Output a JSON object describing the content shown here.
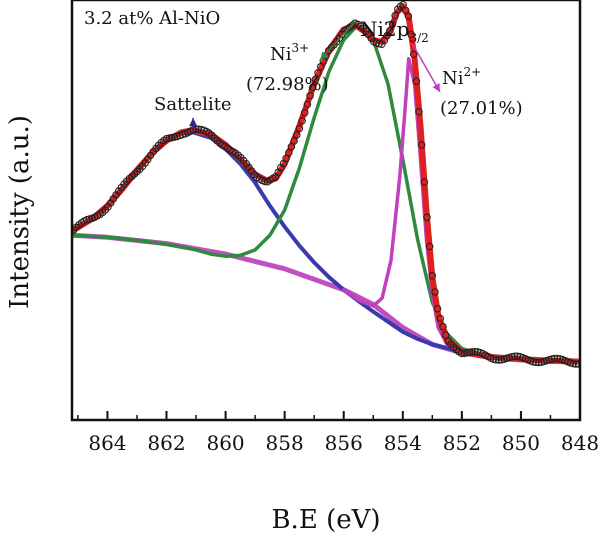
{
  "chart_data": {
    "type": "line",
    "title": "",
    "sample_label": "3.2 at% Al-NiO",
    "xlabel": "B.E (eV)",
    "ylabel": "Intensity (a.u.)",
    "xlim": [
      865.2,
      848
    ],
    "x_reversed": true,
    "ylim": [
      0,
      1
    ],
    "x_ticks": [
      864,
      862,
      860,
      858,
      856,
      854,
      852,
      850,
      848
    ],
    "y_ticks_shown": false,
    "grid": false,
    "legend": "none",
    "region_label": {
      "main": "Ni2p",
      "sub": "3/2"
    },
    "annotations": [
      {
        "text": "Sattelite",
        "target_x": 861.1,
        "target_y": 0.68,
        "color": "#2a2a9a"
      },
      {
        "species": "Ni",
        "charge": "3+",
        "percent": "(72.98%)",
        "target_x": 855.6,
        "target_y": 0.935,
        "color": "#2d8a3e"
      },
      {
        "species": "Ni",
        "charge": "2+",
        "percent": "(27.01%)",
        "target_x": 853.8,
        "target_y": 0.88,
        "color": "#c040c0"
      }
    ],
    "series": [
      {
        "role": "background",
        "color": "#c050c0",
        "x": [
          865.2,
          864,
          862,
          860,
          858,
          857,
          856,
          855,
          854,
          853.5,
          853,
          852,
          851,
          850,
          849,
          848
        ],
        "y": [
          0.44,
          0.435,
          0.42,
          0.395,
          0.36,
          0.335,
          0.31,
          0.275,
          0.22,
          0.2,
          0.18,
          0.16,
          0.148,
          0.143,
          0.14,
          0.138
        ]
      },
      {
        "role": "satellite",
        "color": "#3a3ab0",
        "x": [
          865.2,
          864.5,
          864,
          863.5,
          863,
          862.5,
          862,
          861.5,
          861.1,
          860.5,
          860,
          859.5,
          859,
          858.5,
          858,
          857.5,
          857,
          856.5,
          856,
          855.5,
          855,
          854.5,
          854,
          853.5,
          853,
          852,
          851,
          850,
          849,
          848
        ],
        "y": [
          0.45,
          0.478,
          0.51,
          0.55,
          0.595,
          0.635,
          0.665,
          0.682,
          0.685,
          0.672,
          0.645,
          0.61,
          0.565,
          0.51,
          0.46,
          0.415,
          0.375,
          0.34,
          0.31,
          0.283,
          0.258,
          0.234,
          0.21,
          0.193,
          0.18,
          0.162,
          0.15,
          0.145,
          0.141,
          0.139
        ]
      },
      {
        "role": "Ni3+",
        "color": "#2d8a3e",
        "x": [
          865.2,
          864,
          863,
          862,
          861,
          860.5,
          860,
          859.5,
          859,
          858.5,
          858,
          857.5,
          857,
          856.5,
          856,
          855.6,
          855.2,
          855,
          854.5,
          854,
          853.5,
          853,
          852.5,
          852,
          851,
          850,
          849,
          848
        ],
        "y": [
          0.44,
          0.435,
          0.428,
          0.418,
          0.405,
          0.395,
          0.39,
          0.392,
          0.405,
          0.44,
          0.5,
          0.6,
          0.72,
          0.83,
          0.905,
          0.935,
          0.925,
          0.905,
          0.8,
          0.62,
          0.43,
          0.28,
          0.205,
          0.17,
          0.15,
          0.143,
          0.14,
          0.138
        ]
      },
      {
        "role": "Ni2+",
        "color": "#c040c0",
        "x": [
          856,
          855.5,
          855,
          854.7,
          854.4,
          854.1,
          853.9,
          853.8,
          853.6,
          853.4,
          853.2,
          853,
          852.8,
          852.5,
          852,
          851,
          850
        ],
        "y": [
          0.31,
          0.285,
          0.272,
          0.29,
          0.38,
          0.58,
          0.76,
          0.86,
          0.8,
          0.62,
          0.43,
          0.3,
          0.22,
          0.18,
          0.16,
          0.148,
          0.143
        ]
      },
      {
        "role": "envelope",
        "color": "#e02020",
        "x": [
          865.2,
          864.5,
          864,
          863.5,
          863,
          862.5,
          862,
          861.5,
          861.1,
          860.5,
          860,
          859.5,
          859,
          858.6,
          858.3,
          858,
          857.5,
          857,
          856.5,
          856,
          855.6,
          855.2,
          855,
          854.7,
          854.4,
          854.2,
          854,
          853.8,
          853.6,
          853.4,
          853.2,
          853,
          852.8,
          852.5,
          852,
          851,
          850,
          849,
          848
        ],
        "y": [
          0.45,
          0.48,
          0.51,
          0.55,
          0.595,
          0.635,
          0.665,
          0.685,
          0.69,
          0.68,
          0.655,
          0.62,
          0.585,
          0.57,
          0.575,
          0.61,
          0.7,
          0.8,
          0.88,
          0.93,
          0.94,
          0.92,
          0.905,
          0.9,
          0.93,
          0.97,
          0.985,
          0.96,
          0.86,
          0.7,
          0.5,
          0.34,
          0.25,
          0.19,
          0.163,
          0.15,
          0.145,
          0.141,
          0.139
        ]
      }
    ]
  }
}
